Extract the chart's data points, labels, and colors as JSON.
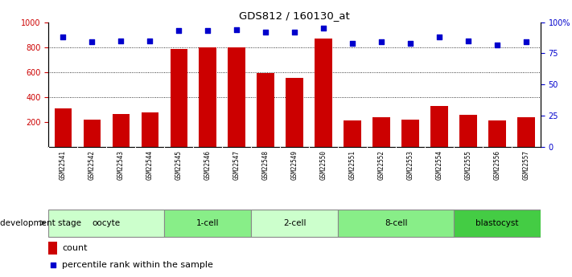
{
  "title": "GDS812 / 160130_at",
  "samples": [
    "GSM22541",
    "GSM22542",
    "GSM22543",
    "GSM22544",
    "GSM22545",
    "GSM22546",
    "GSM22547",
    "GSM22548",
    "GSM22549",
    "GSM22550",
    "GSM22551",
    "GSM22552",
    "GSM22553",
    "GSM22554",
    "GSM22555",
    "GSM22556",
    "GSM22557"
  ],
  "counts": [
    305,
    220,
    260,
    275,
    785,
    800,
    795,
    590,
    550,
    870,
    210,
    240,
    215,
    330,
    255,
    210,
    235
  ],
  "percentiles": [
    88,
    84,
    85,
    85,
    93,
    93,
    94,
    92,
    92,
    95,
    83,
    84,
    83,
    88,
    85,
    82,
    84
  ],
  "bar_color": "#cc0000",
  "dot_color": "#0000cc",
  "ylim_left": [
    0,
    1000
  ],
  "ylim_right": [
    0,
    100
  ],
  "yticks_left": [
    200,
    400,
    600,
    800,
    1000
  ],
  "yticks_right": [
    0,
    25,
    50,
    75,
    100
  ],
  "yticklabels_right": [
    "0",
    "25",
    "50",
    "75",
    "100%"
  ],
  "grid_lines": [
    400,
    600,
    800
  ],
  "stages": [
    {
      "label": "oocyte",
      "start": 0,
      "end": 4,
      "color": "#ccffcc"
    },
    {
      "label": "1-cell",
      "start": 4,
      "end": 7,
      "color": "#88ee88"
    },
    {
      "label": "2-cell",
      "start": 7,
      "end": 10,
      "color": "#ccffcc"
    },
    {
      "label": "8-cell",
      "start": 10,
      "end": 14,
      "color": "#88ee88"
    },
    {
      "label": "blastocyst",
      "start": 14,
      "end": 17,
      "color": "#44cc44"
    }
  ],
  "sample_bg_color": "#bbbbbb",
  "legend_count_color": "#cc0000",
  "legend_dot_color": "#0000cc",
  "legend_count_label": "count",
  "legend_dot_label": "percentile rank within the sample",
  "dev_stage_label": "development stage",
  "fig_width": 7.11,
  "fig_height": 3.45,
  "dpi": 100
}
